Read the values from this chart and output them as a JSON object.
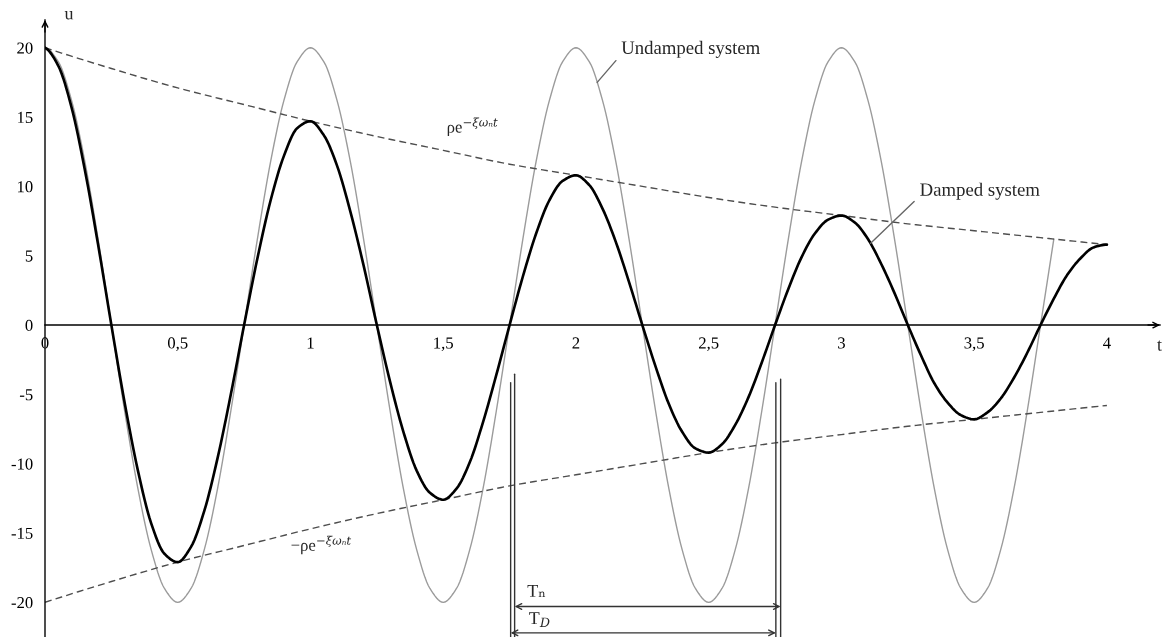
{
  "chart_data": {
    "type": "line",
    "xlabel": "t",
    "ylabel": "u",
    "xlim": [
      0,
      4.2
    ],
    "ylim": [
      -22.5,
      22
    ],
    "xticks": [
      0,
      {
        "value": 0.5,
        "label": "0,5"
      },
      1,
      {
        "value": 1.5,
        "label": "1,5"
      },
      2,
      {
        "value": 2.5,
        "label": "2,5"
      },
      3,
      {
        "value": 3.5,
        "label": "3,5"
      },
      4
    ],
    "yticks": [
      -20,
      -15,
      -10,
      -5,
      0,
      5,
      10,
      15,
      20
    ],
    "series": [
      {
        "color": "#9b9b9b",
        "line_style": "solid",
        "x": [
          0,
          0.05,
          0.1,
          0.15,
          0.2,
          0.25,
          0.3,
          0.35,
          0.4,
          0.45,
          0.5,
          0.55,
          0.6,
          0.65,
          0.7,
          0.75,
          0.8,
          0.85,
          0.9,
          0.95,
          1,
          1.05,
          1.1,
          1.15,
          1.2,
          1.25,
          1.3,
          1.35,
          1.4,
          1.45,
          1.5,
          1.55,
          1.6,
          1.65,
          1.7,
          1.75,
          1.8,
          1.85,
          1.9,
          1.95,
          2,
          2.05,
          2.1,
          2.15,
          2.2,
          2.25,
          2.3,
          2.35,
          2.4,
          2.45,
          2.5,
          2.55,
          2.6,
          2.65,
          2.7,
          2.75,
          2.8,
          2.85,
          2.9,
          2.95,
          3,
          3.05,
          3.1,
          3.15,
          3.2,
          3.25,
          3.3,
          3.35,
          3.4,
          3.45,
          3.5,
          3.55,
          3.6,
          3.65,
          3.7,
          3.75,
          3.8
        ],
        "values": [
          20,
          19,
          16.2,
          11.8,
          6.2,
          0,
          -6.2,
          -11.8,
          -16.2,
          -19,
          -20,
          -19,
          -16.2,
          -11.8,
          -6.2,
          0,
          6.2,
          11.8,
          16.2,
          19,
          20,
          19,
          16.2,
          11.8,
          6.2,
          0,
          -6.2,
          -11.8,
          -16.2,
          -19,
          -20,
          -19,
          -16.2,
          -11.8,
          -6.2,
          0,
          6.2,
          11.8,
          16.2,
          19,
          20,
          19,
          16.2,
          11.8,
          6.2,
          0,
          -6.2,
          -11.8,
          -16.2,
          -19,
          -20,
          -19,
          -16.2,
          -11.8,
          -6.2,
          0,
          6.2,
          11.8,
          16.2,
          19,
          20,
          19,
          16.2,
          11.8,
          6.2,
          0,
          -6.2,
          -11.8,
          -16.2,
          -19,
          -20,
          -19,
          -16.2,
          -11.8,
          -6.2,
          0,
          6.2
        ]
      },
      {
        "color": "#4d4d4d",
        "line_style": "dashed",
        "x": [
          0,
          0.25,
          0.5,
          0.75,
          1,
          1.25,
          1.5,
          1.75,
          2,
          2.25,
          2.5,
          2.75,
          3,
          3.25,
          3.5,
          3.75,
          4
        ],
        "values": [
          20,
          18.5,
          17.1,
          15.9,
          14.7,
          13.6,
          12.6,
          11.6,
          10.8,
          10,
          9.2,
          8.5,
          7.9,
          7.3,
          6.8,
          6.3,
          5.8
        ]
      },
      {
        "color": "#4d4d4d",
        "line_style": "dashed",
        "x": [
          0,
          0.25,
          0.5,
          0.75,
          1,
          1.25,
          1.5,
          1.75,
          2,
          2.25,
          2.5,
          2.75,
          3,
          3.25,
          3.5,
          3.75,
          4
        ],
        "values": [
          -20,
          -18.5,
          -17.1,
          -15.9,
          -14.7,
          -13.6,
          -12.6,
          -11.6,
          -10.8,
          -10,
          -9.2,
          -8.5,
          -7.9,
          -7.3,
          -6.8,
          -6.3,
          -5.8
        ]
      },
      {
        "color": "#000000",
        "line_style": "solid",
        "x": [
          0,
          0.05,
          0.1,
          0.15,
          0.2,
          0.25,
          0.3,
          0.35,
          0.4,
          0.45,
          0.5,
          0.55,
          0.6,
          0.65,
          0.7,
          0.75,
          0.8,
          0.85,
          0.9,
          0.95,
          1,
          1.05,
          1.1,
          1.15,
          1.2,
          1.25,
          1.3,
          1.35,
          1.4,
          1.45,
          1.5,
          1.55,
          1.6,
          1.65,
          1.7,
          1.75,
          1.8,
          1.85,
          1.9,
          1.95,
          2,
          2.05,
          2.1,
          2.15,
          2.2,
          2.25,
          2.3,
          2.35,
          2.4,
          2.45,
          2.5,
          2.55,
          2.6,
          2.65,
          2.7,
          2.75,
          2.8,
          2.85,
          2.9,
          2.95,
          3,
          3.05,
          3.1,
          3.15,
          3.2,
          3.25,
          3.3,
          3.35,
          3.4,
          3.45,
          3.5,
          3.55,
          3.6,
          3.65,
          3.7,
          3.75,
          3.8,
          3.85,
          3.9,
          3.95,
          4
        ],
        "values": [
          20,
          18.7,
          15.7,
          11.2,
          5.8,
          0,
          -5.6,
          -10.5,
          -14.3,
          -16.5,
          -17.1,
          -16,
          -13.4,
          -9.6,
          -5,
          0,
          4.8,
          9,
          12.2,
          14.2,
          14.7,
          13.7,
          11.5,
          8.2,
          4.3,
          0,
          -4.1,
          -7.7,
          -10.5,
          -12.1,
          -12.6,
          -11.8,
          -9.9,
          -7,
          -3.6,
          0,
          3.5,
          6.6,
          9,
          10.4,
          10.8,
          10.1,
          8.4,
          6,
          3.1,
          0,
          -3,
          -5.7,
          -7.7,
          -8.9,
          -9.2,
          -8.6,
          -7.2,
          -5.2,
          -2.7,
          0,
          2.6,
          4.9,
          6.6,
          7.6,
          7.9,
          7.4,
          6.2,
          4.4,
          2.3,
          0,
          -2.2,
          -4.2,
          -5.6,
          -6.5,
          -6.8,
          -6.3,
          -5.3,
          -3.8,
          -2,
          0,
          1.9,
          3.6,
          4.8,
          5.6,
          5.8
        ]
      }
    ],
    "ref_lines": [
      {
        "axis": "x",
        "value": 1.769,
        "color": "#333333"
      },
      {
        "axis": "x",
        "value": 2.771,
        "color": "#333333"
      },
      {
        "axis": "x",
        "value": 1.754,
        "color": "#333333"
      },
      {
        "axis": "x",
        "value": 2.753,
        "color": "#333333"
      }
    ],
    "annotations": [
      {
        "text": "Undamped system",
        "x": 2.08,
        "y": 17.5
      },
      {
        "text": "Damped system",
        "x": 3.11,
        "y": 5.9
      },
      {
        "text": "ρe$^{−ξωₙt}$",
        "x": 1.61,
        "y": 12.2
      },
      {
        "text": "−ρe$^{−ξωₙt}$",
        "x": 1.04,
        "y": -14.5
      },
      {
        "text": "Tₙ",
        "x": 1.769,
        "y": -20.3
      },
      {
        "text": "T$_{D}$",
        "x": 1.754,
        "y": -22.2
      }
    ]
  }
}
